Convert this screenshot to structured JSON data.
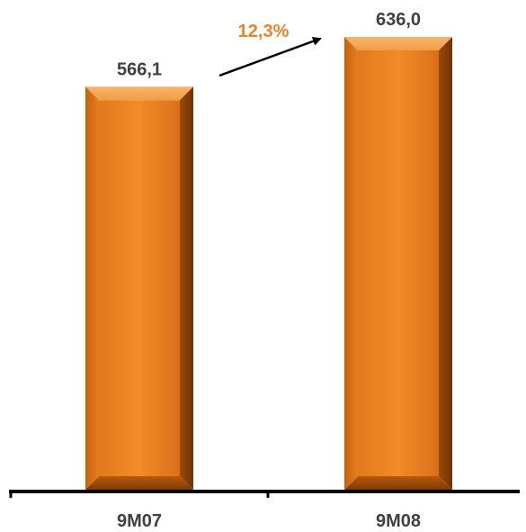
{
  "chart_data": {
    "type": "bar",
    "categories": [
      "9M07",
      "9M08"
    ],
    "values": [
      566.1,
      636.0
    ],
    "value_labels": [
      "566,1",
      "636,0"
    ],
    "growth_label": "12,3%",
    "title": "",
    "xlabel": "",
    "ylabel": "",
    "ylim": [
      0,
      636.0
    ],
    "grid": false,
    "legend": "none"
  },
  "colors": {
    "bar_face": "#f28a26",
    "bar_highlight": "#f6a956",
    "bar_shadow": "#a34e08",
    "growth_text": "#e8822c",
    "axis": "#000000",
    "label_text": "#404040",
    "arrow": "#000000"
  }
}
